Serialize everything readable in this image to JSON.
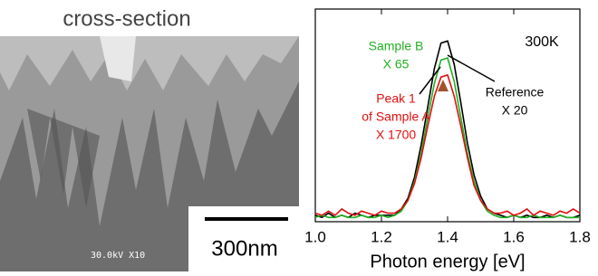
{
  "image_panel": {
    "title": "cross-section",
    "scale_bar": "300nm",
    "sem_info": "30.0kV X10"
  },
  "chart_data": {
    "type": "line",
    "xlabel": "Photon energy [eV]",
    "annotation": "300K",
    "xlim": [
      1.0,
      1.8
    ],
    "xticks": [
      {
        "value": 1.0,
        "label": "1.0"
      },
      {
        "value": 1.2,
        "label": "1.2"
      },
      {
        "value": 1.4,
        "label": "1.4"
      },
      {
        "value": 1.6,
        "label": "1.6"
      },
      {
        "value": 1.8,
        "label": "1.8"
      }
    ],
    "ylim": [
      0,
      1
    ],
    "x": [
      1.0,
      1.02,
      1.04,
      1.06,
      1.08,
      1.1,
      1.12,
      1.14,
      1.16,
      1.18,
      1.2,
      1.22,
      1.24,
      1.26,
      1.28,
      1.3,
      1.32,
      1.34,
      1.36,
      1.38,
      1.4,
      1.42,
      1.44,
      1.46,
      1.48,
      1.5,
      1.52,
      1.54,
      1.56,
      1.58,
      1.6,
      1.62,
      1.64,
      1.66,
      1.68,
      1.7,
      1.72,
      1.74,
      1.76,
      1.78,
      1.8
    ],
    "series": [
      {
        "name": "Reference",
        "note_lines": [
          "X 20"
        ],
        "color": "#000000",
        "values": [
          0.03,
          0.02,
          0.04,
          0.02,
          0.03,
          0.02,
          0.04,
          0.03,
          0.02,
          0.03,
          0.03,
          0.03,
          0.03,
          0.06,
          0.11,
          0.21,
          0.36,
          0.54,
          0.72,
          0.84,
          0.85,
          0.74,
          0.56,
          0.37,
          0.22,
          0.12,
          0.06,
          0.04,
          0.03,
          0.02,
          0.03,
          0.02,
          0.03,
          0.02,
          0.02,
          0.03,
          0.02,
          0.03,
          0.02,
          0.02,
          0.03
        ]
      },
      {
        "name": "Sample B",
        "note_lines": [
          "X 65"
        ],
        "color": "#22b022",
        "values": [
          0.02,
          0.03,
          0.02,
          0.02,
          0.03,
          0.02,
          0.02,
          0.03,
          0.02,
          0.02,
          0.03,
          0.02,
          0.03,
          0.05,
          0.1,
          0.19,
          0.32,
          0.49,
          0.65,
          0.76,
          0.77,
          0.66,
          0.49,
          0.32,
          0.19,
          0.1,
          0.05,
          0.03,
          0.02,
          0.02,
          0.03,
          0.02,
          0.02,
          0.03,
          0.02,
          0.02,
          0.02,
          0.03,
          0.02,
          0.02,
          0.02
        ]
      },
      {
        "name": "Peak 1",
        "note_lines": [
          "of Sample A",
          "X 1700"
        ],
        "color": "#e01010",
        "values": [
          0.04,
          0.03,
          0.05,
          0.03,
          0.06,
          0.04,
          0.03,
          0.05,
          0.04,
          0.03,
          0.05,
          0.04,
          0.04,
          0.06,
          0.1,
          0.18,
          0.3,
          0.45,
          0.59,
          0.68,
          0.69,
          0.59,
          0.45,
          0.3,
          0.17,
          0.1,
          0.06,
          0.04,
          0.04,
          0.05,
          0.03,
          0.04,
          0.06,
          0.03,
          0.05,
          0.04,
          0.03,
          0.05,
          0.04,
          0.06,
          0.04
        ]
      }
    ]
  }
}
